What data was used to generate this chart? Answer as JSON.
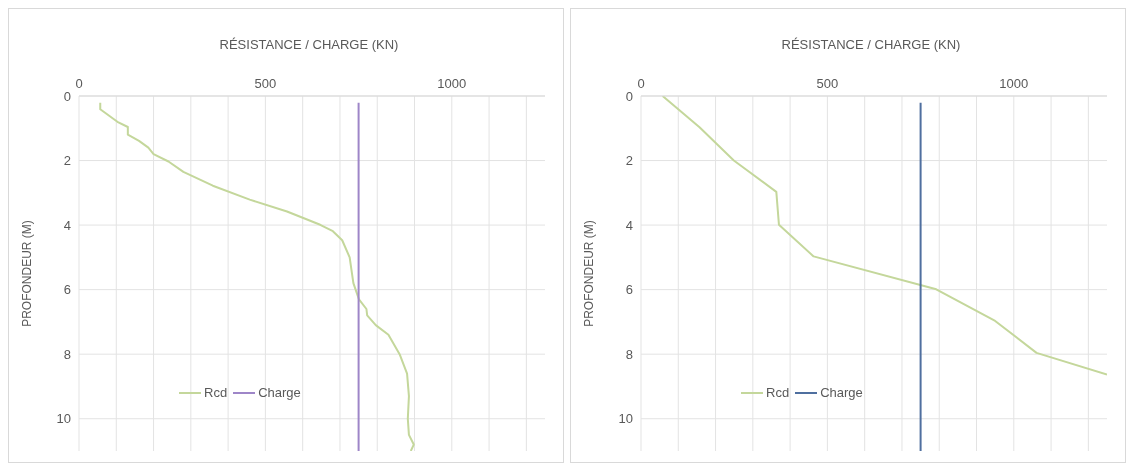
{
  "chart_data": [
    {
      "type": "line",
      "xlabel": "RÉSISTANCE / CHARGE (KN)",
      "ylabel": "PROFONDEUR (M)",
      "xlim": [
        0,
        1250
      ],
      "xticks": [
        0,
        {
          "value": 100,
          "label": null
        },
        {
          "value": 200,
          "label": null
        },
        {
          "value": 300,
          "label": null
        },
        {
          "value": 400,
          "label": null
        },
        500,
        {
          "value": 600,
          "label": null
        },
        {
          "value": 700,
          "label": null
        },
        {
          "value": 800,
          "label": null
        },
        {
          "value": 900,
          "label": null
        },
        1000,
        {
          "value": 1100,
          "label": null
        },
        {
          "value": 1200,
          "label": null
        }
      ],
      "ylim": [
        11,
        0
      ],
      "yticks": [
        0,
        2,
        4,
        6,
        8,
        10
      ],
      "grid": true,
      "legend": "bottom left",
      "marker": "none",
      "line_style": "solid",
      "series": [
        {
          "name": "Rcd",
          "color": "#c4d79b",
          "x": [
            57,
            57,
            103,
            131,
            131,
            161,
            186,
            200,
            240,
            280,
            359,
            458,
            558,
            647,
            681,
            706,
            726,
            736,
            751,
            771,
            773,
            796,
            830,
            860,
            880,
            885,
            882,
            885,
            898,
            890
          ],
          "values": [
            0.21,
            0.41,
            0.8,
            0.96,
            1.2,
            1.39,
            1.6,
            1.8,
            2.03,
            2.35,
            2.78,
            3.21,
            3.58,
            3.99,
            4.19,
            4.47,
            5.0,
            5.8,
            6.3,
            6.6,
            6.8,
            7.1,
            7.4,
            8.0,
            8.6,
            9.3,
            10.0,
            10.5,
            10.8,
            11.0
          ]
        },
        {
          "name": "Charge",
          "color": "#9e86c8",
          "x": [
            750,
            750
          ],
          "values": [
            0.21,
            11
          ]
        }
      ]
    },
    {
      "type": "line",
      "xlabel": "RÉSISTANCE / CHARGE (KN)",
      "ylabel": "PROFONDEUR (M)",
      "xlim": [
        0,
        1250
      ],
      "xticks": [
        0,
        {
          "value": 100,
          "label": null
        },
        {
          "value": 200,
          "label": null
        },
        {
          "value": 300,
          "label": null
        },
        {
          "value": 400,
          "label": null
        },
        500,
        {
          "value": 600,
          "label": null
        },
        {
          "value": 700,
          "label": null
        },
        {
          "value": 800,
          "label": null
        },
        {
          "value": 900,
          "label": null
        },
        1000,
        {
          "value": 1100,
          "label": null
        },
        {
          "value": 1200,
          "label": null
        }
      ],
      "ylim": [
        11,
        0
      ],
      "yticks": [
        0,
        2,
        4,
        6,
        8,
        10
      ],
      "grid": true,
      "legend": "bottom left",
      "marker": "none",
      "line_style": "solid",
      "series": [
        {
          "name": "Rcd",
          "color": "#c4d79b",
          "x": [
            58,
            157,
            249,
            363,
            370,
            463,
            792,
            950,
            1061,
            1250
          ],
          "values": [
            0,
            0.97,
            2.0,
            2.97,
            3.99,
            4.97,
            5.99,
            6.97,
            7.96,
            8.63
          ]
        },
        {
          "name": "Charge",
          "color": "#4f6f9f",
          "x": [
            750,
            750
          ],
          "values": [
            0.21,
            11
          ]
        }
      ]
    }
  ]
}
